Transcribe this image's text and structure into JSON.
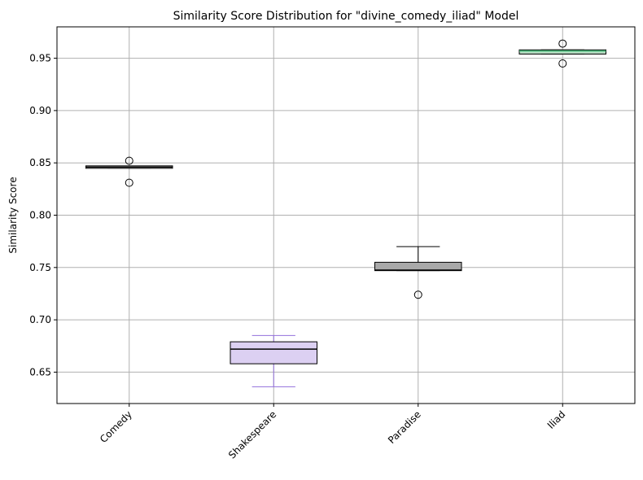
{
  "chart_data": {
    "type": "box",
    "title": "Similarity Score Distribution for \"divine_comedy_iliad\" Model",
    "xlabel": "",
    "ylabel": "Similarity Score",
    "ylim": [
      0.62,
      0.98
    ],
    "yticks": [
      "0.65",
      "0.70",
      "0.75",
      "0.80",
      "0.85",
      "0.90",
      "0.95"
    ],
    "grid": true,
    "categories": [
      "Comedy",
      "Shakespeare",
      "Paradise",
      "Iliad"
    ],
    "boxes": [
      {
        "category": "Comedy",
        "whisker_low": 0.845,
        "q1": 0.845,
        "median": 0.846,
        "q3": 0.847,
        "whisker_high": 0.847,
        "outliers": [
          0.852,
          0.831
        ],
        "box_color": "#ffffff",
        "median_color": "#000000",
        "whisker_color": "#000000"
      },
      {
        "category": "Shakespeare",
        "whisker_low": 0.636,
        "q1": 0.658,
        "median": 0.672,
        "q3": 0.679,
        "whisker_high": 0.685,
        "outliers": [],
        "box_color": "#dcd0f2",
        "median_color": "#000000",
        "whisker_color": "#9370db"
      },
      {
        "category": "Paradise",
        "whisker_low": 0.747,
        "q1": 0.747,
        "median": 0.7475,
        "q3": 0.755,
        "whisker_high": 0.77,
        "outliers": [
          0.724
        ],
        "box_color": "#a9a9a9",
        "median_color": "#000000",
        "whisker_color": "#000000"
      },
      {
        "category": "Iliad",
        "whisker_low": 0.954,
        "q1": 0.954,
        "median": 0.957,
        "q3": 0.958,
        "whisker_high": 0.958,
        "outliers": [
          0.964,
          0.945
        ],
        "box_color": "#b8ddc4",
        "median_color": "#3cb371",
        "whisker_color": "#000000"
      }
    ]
  }
}
